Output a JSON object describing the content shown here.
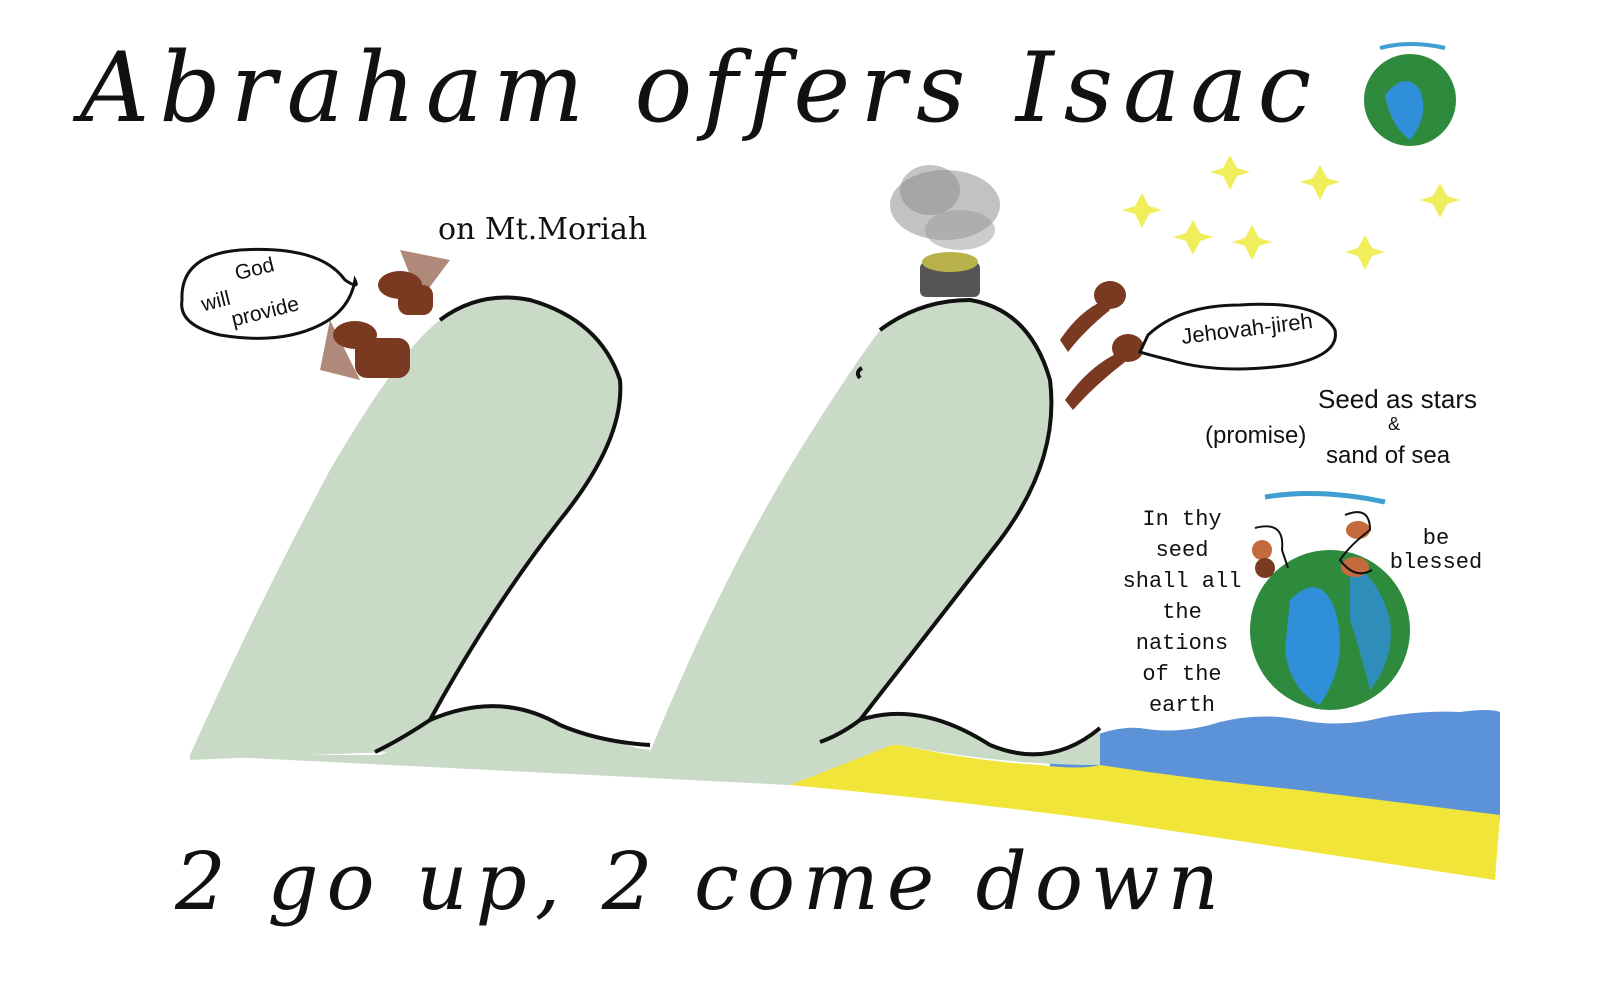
{
  "title": "Abraham offers Isaac",
  "subtitle": "2 go up, 2 come down",
  "location_label": "on Mt.Moriah",
  "bubble_left": {
    "line1": "God",
    "line2": "will",
    "line3": "provide"
  },
  "bubble_right": "Jehovah-jireh",
  "promise": {
    "label": "(promise)",
    "line1": "Seed as stars",
    "line2": "&",
    "line3": "sand of sea"
  },
  "blessing": {
    "left_lines": [
      "In thy",
      "seed",
      "shall all",
      "the nations",
      "of the",
      "earth"
    ],
    "right_lines": [
      "be",
      "blessed"
    ]
  },
  "big_numeral": "22",
  "colors": {
    "mountain": "#c9dbc6",
    "sand": "#f2e53a",
    "sea": "#3f7fd0",
    "earth_land": "#2e8b3e",
    "earth_water": "#2f8fd8",
    "figure": "#7a3a22",
    "star": "#f0ee5a",
    "smoke": "#9a9a9a"
  }
}
